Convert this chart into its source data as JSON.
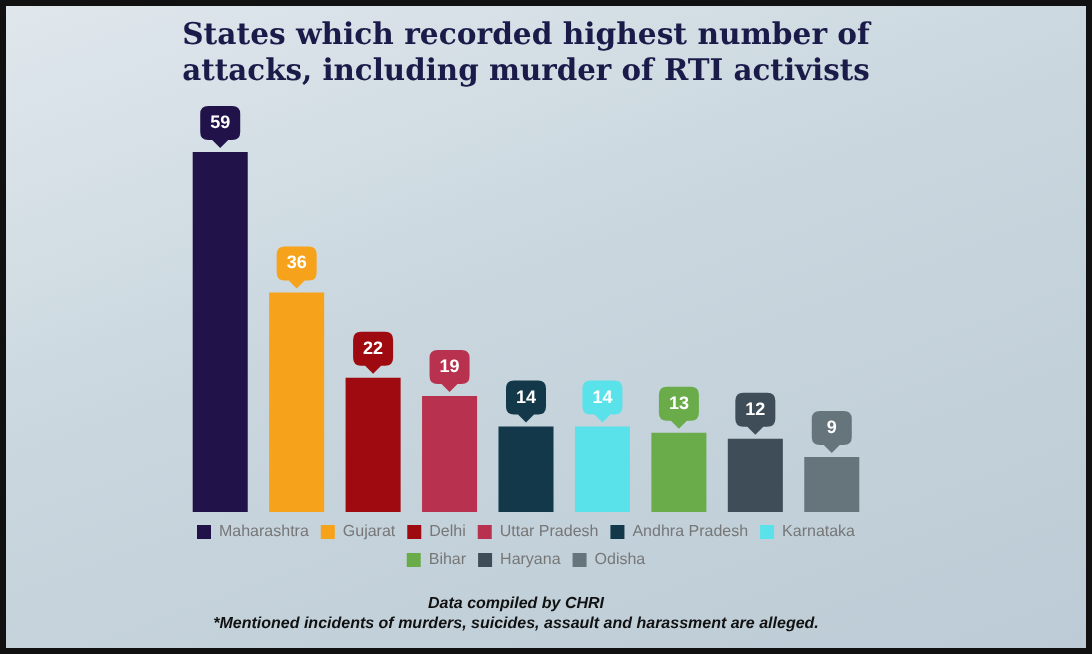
{
  "chart_data": {
    "type": "bar",
    "title": "States which recorded highest number of attacks, including murder of RTI activists",
    "categories": [
      null,
      null,
      null,
      null,
      null,
      null,
      null,
      null,
      null
    ],
    "stacked": true,
    "series": [
      {
        "name": "Maharashtra",
        "color": "#21134a",
        "values": [
          59,
          null,
          null,
          null,
          null,
          null,
          null,
          null,
          null
        ]
      },
      {
        "name": "Gujarat",
        "color": "#f7a21b",
        "values": [
          null,
          36,
          null,
          null,
          null,
          null,
          null,
          null,
          null
        ]
      },
      {
        "name": "Delhi",
        "color": "#9e0a10",
        "values": [
          null,
          null,
          22,
          null,
          null,
          null,
          null,
          null,
          null
        ]
      },
      {
        "name": "Uttar Pradesh",
        "color": "#b8324f",
        "values": [
          null,
          null,
          null,
          19,
          null,
          null,
          null,
          null,
          null
        ]
      },
      {
        "name": "Andhra Pradesh",
        "color": "#12384a",
        "values": [
          null,
          null,
          null,
          null,
          14,
          null,
          null,
          null,
          null
        ]
      },
      {
        "name": "Karnataka",
        "color": "#5ae2ea",
        "values": [
          null,
          null,
          null,
          null,
          null,
          14,
          null,
          null,
          null
        ]
      },
      {
        "name": "Bihar",
        "color": "#6aab4a",
        "values": [
          null,
          null,
          null,
          null,
          null,
          null,
          13,
          null,
          null
        ]
      },
      {
        "name": "Haryana",
        "color": "#3e4d58",
        "values": [
          null,
          null,
          null,
          null,
          null,
          null,
          null,
          12,
          null
        ]
      },
      {
        "name": "Odisha",
        "color": "#66757c",
        "values": [
          null,
          null,
          null,
          null,
          null,
          null,
          null,
          null,
          9
        ]
      }
    ],
    "data_labels": true,
    "legend": "bottom",
    "grid": false,
    "annotations": [
      "Data compiled by CHRI",
      "*Mentioned incidents of murders, suicides, assault and harassment are alleged."
    ]
  }
}
